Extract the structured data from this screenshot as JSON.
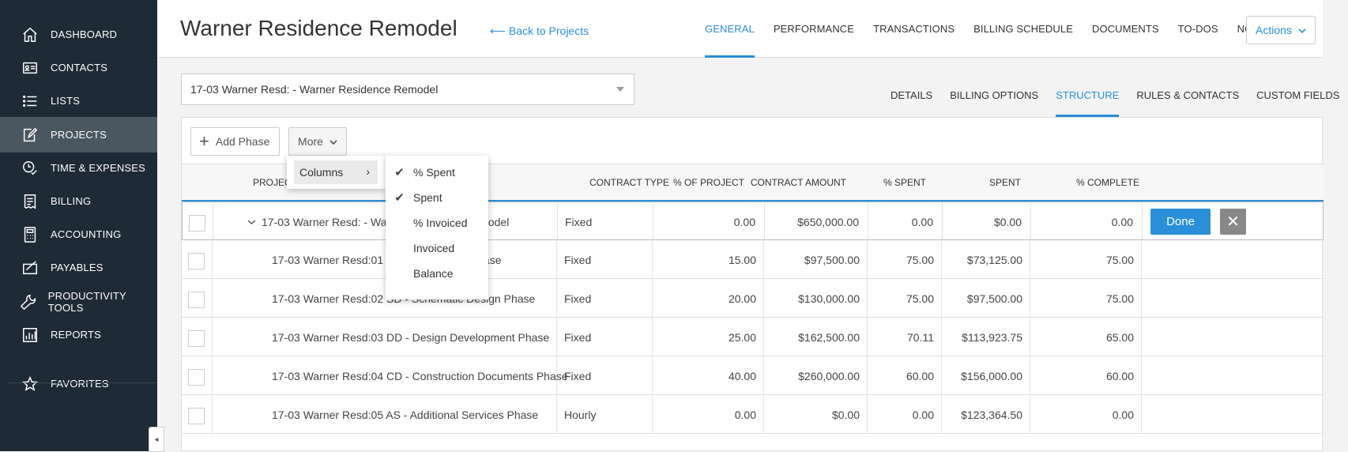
{
  "sidebar": {
    "items": [
      {
        "label": "Dashboard",
        "icon": "home-icon"
      },
      {
        "label": "Contacts",
        "icon": "contact-card-icon"
      },
      {
        "label": "Lists",
        "icon": "list-icon"
      },
      {
        "label": "Projects",
        "icon": "edit-icon",
        "active": true
      },
      {
        "label": "Time & Expenses",
        "icon": "clock-check-icon"
      },
      {
        "label": "Billing",
        "icon": "receipt-icon"
      },
      {
        "label": "Accounting",
        "icon": "calculator-icon"
      },
      {
        "label": "Payables",
        "icon": "check-card-icon"
      },
      {
        "label": "Productivity Tools",
        "icon": "wrench-icon"
      },
      {
        "label": "Reports",
        "icon": "chart-icon"
      },
      {
        "label": "Favorites",
        "icon": "star-icon"
      }
    ],
    "collapse_glyph": "◂"
  },
  "header": {
    "title": "Warner Residence Remodel",
    "back_link": "⟵ Back to Projects",
    "tabs": [
      "GENERAL",
      "PERFORMANCE",
      "TRANSACTIONS",
      "BILLING SCHEDULE",
      "DOCUMENTS",
      "TO-DOS",
      "NOTES"
    ],
    "active_tab": "GENERAL",
    "actions_label": "Actions"
  },
  "project_select": {
    "value": "17-03 Warner Resd: - Warner Residence Remodel"
  },
  "sub_tabs": {
    "items": [
      "DETAILS",
      "BILLING OPTIONS",
      "STRUCTURE",
      "RULES & CONTACTS",
      "CUSTOM FIELDS"
    ],
    "active": "STRUCTURE"
  },
  "toolbar": {
    "add_phase": "Add Phase",
    "more": "More"
  },
  "more_menu": {
    "columns": "Columns"
  },
  "columns_menu": [
    {
      "label": "% Spent",
      "checked": true
    },
    {
      "label": "Spent",
      "checked": true
    },
    {
      "label": "% Invoiced",
      "checked": false
    },
    {
      "label": "Invoiced",
      "checked": false
    },
    {
      "label": "Balance",
      "checked": false
    }
  ],
  "table": {
    "headers": {
      "project": "PROJECT",
      "contract_type": "CONTRACT TYPE",
      "pct_project": "% OF PROJECT",
      "contract_amount": "CONTRACT AMOUNT",
      "pct_spent": "% SPENT",
      "spent": "SPENT",
      "pct_complete": "% COMPLETE"
    },
    "rows": [
      {
        "name": "17-03 Warner Resd: - Warner Residence Remodel",
        "type": "Fixed",
        "pct_project": "0.00",
        "amount": "$650,000.00",
        "pct_spent": "0.00",
        "spent": "$0.00",
        "pct_complete": "0.00"
      },
      {
        "name": "17-03 Warner Resd:01 PD - Pre-Design Phase",
        "type": "Fixed",
        "pct_project": "15.00",
        "amount": "$97,500.00",
        "pct_spent": "75.00",
        "spent": "$73,125.00",
        "pct_complete": "75.00"
      },
      {
        "name": "17-03 Warner Resd:02 SD - Schematic Design Phase",
        "type": "Fixed",
        "pct_project": "20.00",
        "amount": "$130,000.00",
        "pct_spent": "75.00",
        "spent": "$97,500.00",
        "pct_complete": "75.00"
      },
      {
        "name": "17-03 Warner Resd:03 DD - Design Development Phase",
        "type": "Fixed",
        "pct_project": "25.00",
        "amount": "$162,500.00",
        "pct_spent": "70.11",
        "spent": "$113,923.75",
        "pct_complete": "65.00"
      },
      {
        "name": "17-03 Warner Resd:04 CD - Construction Documents Phase",
        "type": "Fixed",
        "pct_project": "40.00",
        "amount": "$260,000.00",
        "pct_spent": "60.00",
        "spent": "$156,000.00",
        "pct_complete": "60.00"
      },
      {
        "name": "17-03 Warner Resd:05 AS - Additional Services Phase",
        "type": "Hourly",
        "pct_project": "0.00",
        "amount": "$0.00",
        "pct_spent": "0.00",
        "spent": "$123,364.50",
        "pct_complete": "0.00"
      }
    ],
    "done_label": "Done",
    "cancel_glyph": "✕"
  },
  "colors": {
    "sidebar_bg": "#1e2a35",
    "accent": "#2a8fd8",
    "active_nav": "#4a5660"
  }
}
